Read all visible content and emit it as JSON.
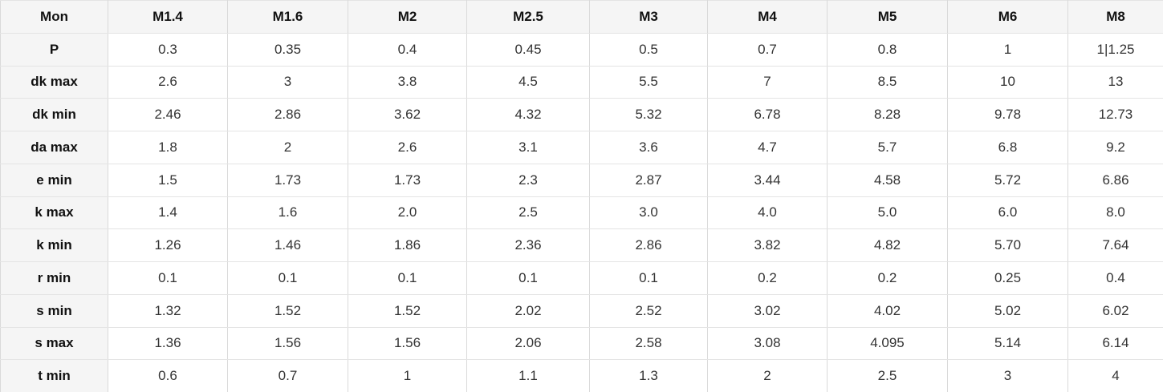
{
  "colors": {
    "header_bg": "#f5f5f5",
    "cell_bg": "#ffffff",
    "border_horizontal": "#e4e4e4",
    "border_vertical": "#dadada",
    "header_text": "#111111",
    "cell_text": "#333333"
  },
  "chart_data": {
    "type": "table",
    "columns": [
      "Mon",
      "M1.4",
      "M1.6",
      "M2",
      "M2.5",
      "M3",
      "M4",
      "M5",
      "M6",
      "M8"
    ],
    "rows": [
      {
        "label": "P",
        "values": [
          "0.3",
          "0.35",
          "0.4",
          "0.45",
          "0.5",
          "0.7",
          "0.8",
          "1",
          "1|1.25"
        ]
      },
      {
        "label": "dk max",
        "values": [
          "2.6",
          "3",
          "3.8",
          "4.5",
          "5.5",
          "7",
          "8.5",
          "10",
          "13"
        ]
      },
      {
        "label": "dk min",
        "values": [
          "2.46",
          "2.86",
          "3.62",
          "4.32",
          "5.32",
          "6.78",
          "8.28",
          "9.78",
          "12.73"
        ]
      },
      {
        "label": "da max",
        "values": [
          "1.8",
          "2",
          "2.6",
          "3.1",
          "3.6",
          "4.7",
          "5.7",
          "6.8",
          "9.2"
        ]
      },
      {
        "label": "e min",
        "values": [
          "1.5",
          "1.73",
          "1.73",
          "2.3",
          "2.87",
          "3.44",
          "4.58",
          "5.72",
          "6.86"
        ]
      },
      {
        "label": "k max",
        "values": [
          "1.4",
          "1.6",
          "2.0",
          "2.5",
          "3.0",
          "4.0",
          "5.0",
          "6.0",
          "8.0"
        ]
      },
      {
        "label": "k min",
        "values": [
          "1.26",
          "1.46",
          "1.86",
          "2.36",
          "2.86",
          "3.82",
          "4.82",
          "5.70",
          "7.64"
        ]
      },
      {
        "label": "r min",
        "values": [
          "0.1",
          "0.1",
          "0.1",
          "0.1",
          "0.1",
          "0.2",
          "0.2",
          "0.25",
          "0.4"
        ]
      },
      {
        "label": "s min",
        "values": [
          "1.32",
          "1.52",
          "1.52",
          "2.02",
          "2.52",
          "3.02",
          "4.02",
          "5.02",
          "6.02"
        ]
      },
      {
        "label": "s max",
        "values": [
          "1.36",
          "1.56",
          "1.56",
          "2.06",
          "2.58",
          "3.08",
          "4.095",
          "5.14",
          "6.14"
        ]
      },
      {
        "label": "t min",
        "values": [
          "0.6",
          "0.7",
          "1",
          "1.1",
          "1.3",
          "2",
          "2.5",
          "3",
          "4"
        ]
      }
    ]
  }
}
